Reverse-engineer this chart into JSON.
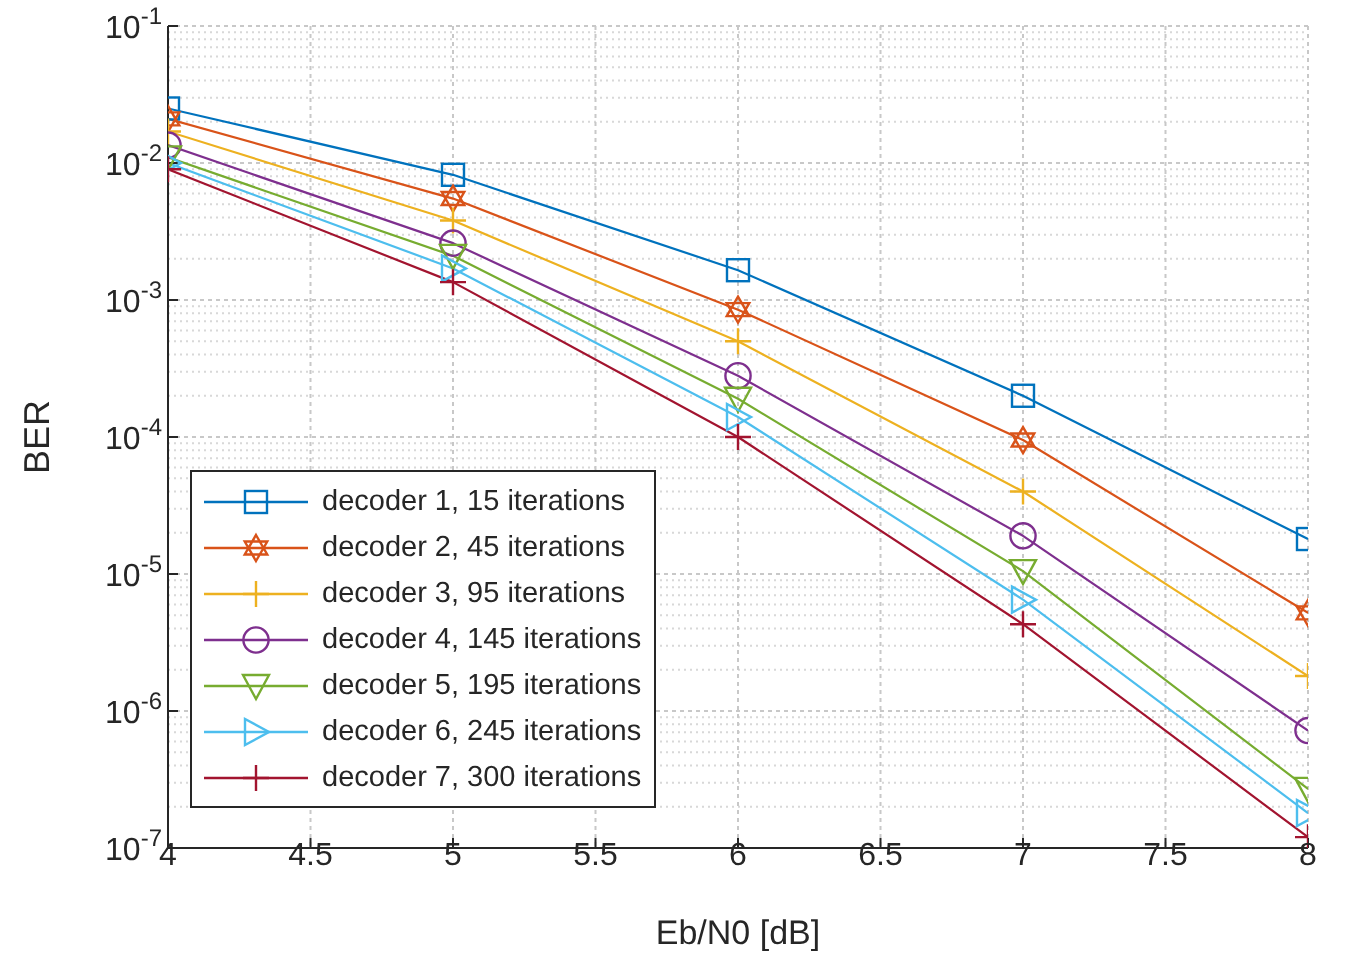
{
  "chart_data": {
    "type": "line",
    "xlabel": "Eb/N0 [dB]",
    "ylabel": "BER",
    "x": [
      4,
      5,
      6,
      7,
      8
    ],
    "xlim": [
      4,
      8
    ],
    "xticks": [
      4,
      4.5,
      5,
      5.5,
      6,
      6.5,
      7,
      7.5,
      8
    ],
    "log": "y",
    "ylim": [
      1e-07,
      0.1
    ],
    "yticks": [
      {
        "value": 1e-07,
        "label": "10$^{-7}$"
      },
      {
        "value": 1e-06,
        "label": "10$^{-6}$"
      },
      {
        "value": 1e-05,
        "label": "10$^{-5}$"
      },
      {
        "value": 0.0001,
        "label": "10$^{-4}$"
      },
      {
        "value": 0.001,
        "label": "10$^{-3}$"
      },
      {
        "value": 0.01,
        "label": "10$^{-2}$"
      },
      {
        "value": 0.1,
        "label": "10$^{-1}$"
      }
    ],
    "grid": true,
    "legend": "bottom left",
    "line_style": "solid",
    "series": [
      {
        "name": "decoder 1, 15 iterations",
        "color": "#0072bd",
        "marker": "square",
        "values": [
          0.025,
          0.0082,
          0.00165,
          0.0002,
          1.8e-05
        ]
      },
      {
        "name": "decoder 2, 45 iterations",
        "color": "#d95319",
        "marker": "star",
        "values": [
          0.021,
          0.0055,
          0.00085,
          9.5e-05,
          5.2e-06
        ]
      },
      {
        "name": "decoder 3, 95 iterations",
        "color": "#edb120",
        "marker": "cross",
        "values": [
          0.017,
          0.0038,
          0.0005,
          4e-05,
          1.8e-06
        ]
      },
      {
        "name": "decoder 4, 145 iterations",
        "color": "#7e2f8e",
        "marker": "circle",
        "values": [
          0.0135,
          0.0026,
          0.00028,
          1.9e-05,
          7.2e-07
        ]
      },
      {
        "name": "decoder 5, 195 iterations",
        "color": "#77ac30",
        "marker": "triangle-down",
        "values": [
          0.011,
          0.0021,
          0.00019,
          1.05e-05,
          2.7e-07
        ]
      },
      {
        "name": "decoder 6, 245 iterations",
        "color": "#4dbeee",
        "marker": "triangle-right",
        "values": [
          0.01,
          0.0017,
          0.00014,
          6.5e-06,
          1.8e-07
        ]
      },
      {
        "name": "decoder 7, 300 iterations",
        "color": "#a2142f",
        "marker": "cross",
        "values": [
          0.009,
          0.00135,
          0.0001,
          4.3e-06,
          1.2e-07
        ]
      }
    ]
  }
}
